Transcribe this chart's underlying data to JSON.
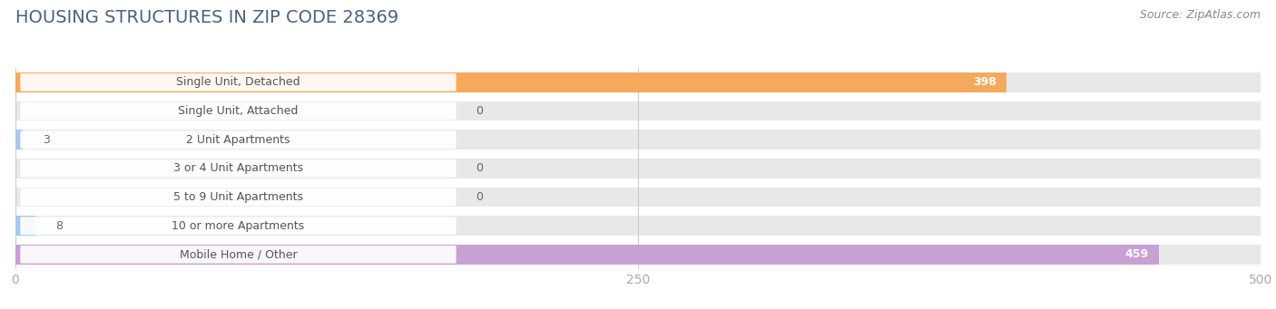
{
  "title": "HOUSING STRUCTURES IN ZIP CODE 28369",
  "source": "Source: ZipAtlas.com",
  "categories": [
    "Single Unit, Detached",
    "Single Unit, Attached",
    "2 Unit Apartments",
    "3 or 4 Unit Apartments",
    "5 to 9 Unit Apartments",
    "10 or more Apartments",
    "Mobile Home / Other"
  ],
  "values": [
    398,
    0,
    3,
    0,
    0,
    8,
    459
  ],
  "bar_colors": [
    "#f5a95c",
    "#f2a0a0",
    "#a8c8f0",
    "#a8c8f0",
    "#a8c8f0",
    "#a8c8f0",
    "#c9a0d4"
  ],
  "bar_bg_color": "#e8e8e8",
  "xlim": [
    0,
    500
  ],
  "xticks": [
    0,
    250,
    500
  ],
  "background_color": "#ffffff",
  "title_fontsize": 14,
  "label_fontsize": 9,
  "value_fontsize": 9,
  "source_fontsize": 9,
  "title_color": "#4a6080",
  "label_color": "#555555",
  "value_color_inside": "#ffffff",
  "value_color_outside": "#666666",
  "source_color": "#888888",
  "tick_color": "#aaaaaa",
  "grid_color": "#cccccc"
}
